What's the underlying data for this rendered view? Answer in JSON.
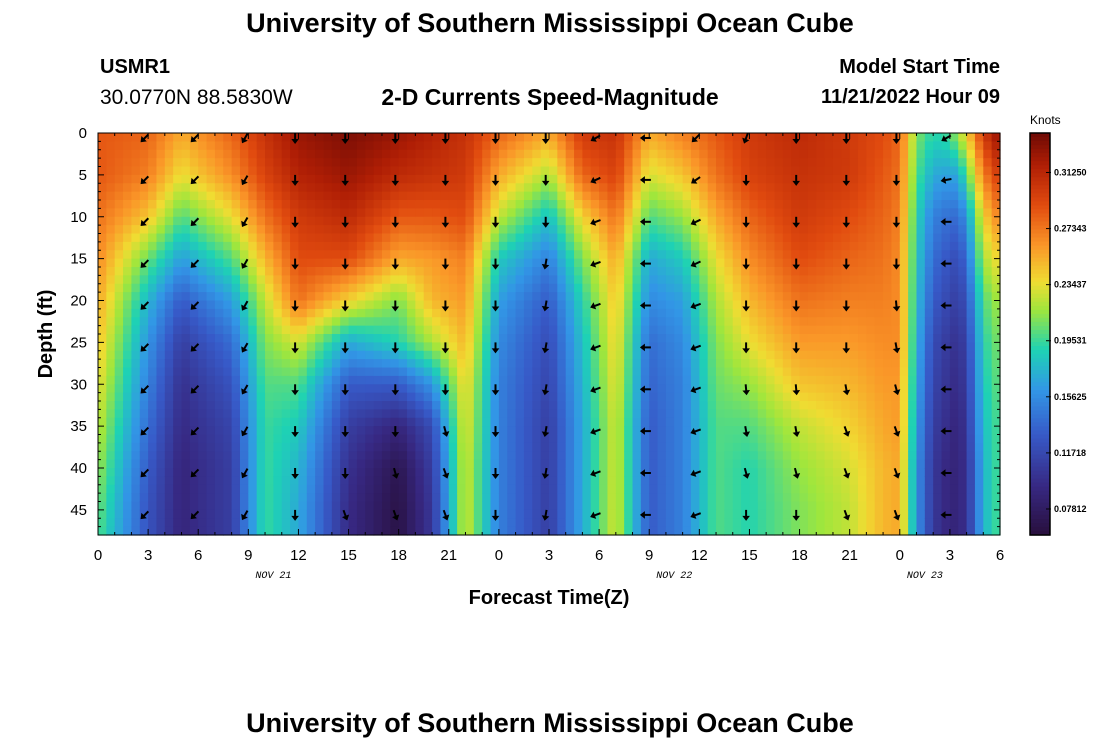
{
  "header": {
    "title": "University of Southern Mississippi Ocean Cube",
    "station_id": "USMR1",
    "coordinates": "30.0770N  88.5830W",
    "plot_title": "2-D Currents Speed-Magnitude",
    "model_start_label": "Model Start Time",
    "model_start_time": "11/21/2022 Hour 09"
  },
  "footer": {
    "title": "University of Southern Mississippi Ocean Cube"
  },
  "chart_data": {
    "type": "heatmap",
    "title": "2-D Currents Speed-Magnitude",
    "xlabel": "Forecast Time(Z)",
    "ylabel": "Depth (ft)",
    "x_ticks": [
      "0",
      "3",
      "6",
      "9",
      "12",
      "15",
      "18",
      "21",
      "0",
      "3",
      "6",
      "9",
      "12",
      "15",
      "18",
      "21",
      "0",
      "3",
      "6"
    ],
    "date_labels": [
      {
        "label": "NOV 21",
        "after_tick_index": 4
      },
      {
        "label": "NOV 22",
        "after_tick_index": 12
      },
      {
        "label": "NOV 23",
        "after_tick_index": 17
      }
    ],
    "y_ticks": [
      0,
      5,
      10,
      15,
      20,
      25,
      30,
      35,
      40,
      45
    ],
    "ylim": [
      48,
      0
    ],
    "colorbar": {
      "label": "Knots",
      "range": [
        0.06,
        0.34
      ],
      "ticks": [
        "0.31250",
        "0.27343",
        "0.23437",
        "0.19531",
        "0.15625",
        "0.11718",
        "0.07812"
      ],
      "tick_values": [
        0.3125,
        0.27343,
        0.23437,
        0.19531,
        0.15625,
        0.11718,
        0.07812
      ]
    },
    "arrow_times": [
      2.8,
      5.8,
      8.8,
      11.8,
      14.8,
      17.8,
      20.8,
      23.8,
      26.8,
      29.8,
      32.8,
      35.8,
      38.8,
      41.8,
      44.8,
      47.8,
      50.8
    ],
    "arrow_depths": [
      0,
      5,
      10,
      15,
      20,
      25,
      30,
      35,
      40,
      45
    ],
    "arrow_directions_deg": [
      [
        225,
        225,
        225,
        225,
        225,
        225,
        225,
        225,
        225,
        225
      ],
      [
        225,
        225,
        225,
        225,
        225,
        225,
        225,
        225,
        225,
        225
      ],
      [
        210,
        210,
        210,
        210,
        210,
        210,
        210,
        210,
        210,
        210
      ],
      [
        180,
        180,
        180,
        180,
        180,
        180,
        180,
        180,
        180,
        180
      ],
      [
        180,
        180,
        180,
        180,
        180,
        180,
        180,
        180,
        180,
        160
      ],
      [
        180,
        180,
        180,
        180,
        180,
        180,
        180,
        180,
        165,
        160
      ],
      [
        180,
        180,
        180,
        180,
        180,
        180,
        180,
        165,
        160,
        160
      ],
      [
        180,
        180,
        180,
        180,
        180,
        180,
        180,
        180,
        180,
        180
      ],
      [
        180,
        180,
        180,
        190,
        190,
        190,
        190,
        190,
        190,
        190
      ],
      [
        240,
        245,
        250,
        250,
        250,
        250,
        250,
        250,
        250,
        250
      ],
      [
        270,
        270,
        270,
        270,
        270,
        270,
        270,
        270,
        270,
        270
      ],
      [
        225,
        235,
        245,
        245,
        250,
        250,
        250,
        250,
        250,
        250
      ],
      [
        200,
        180,
        180,
        180,
        180,
        180,
        175,
        170,
        165,
        180
      ],
      [
        180,
        180,
        180,
        180,
        180,
        180,
        175,
        170,
        165,
        180
      ],
      [
        180,
        180,
        180,
        180,
        180,
        180,
        170,
        160,
        160,
        160
      ],
      [
        180,
        180,
        180,
        180,
        175,
        170,
        165,
        160,
        160,
        160
      ],
      [
        240,
        260,
        270,
        270,
        270,
        270,
        270,
        270,
        270,
        270
      ]
    ],
    "speed_profiles": {
      "times": [
        0,
        3,
        5,
        8,
        10,
        12,
        15,
        18,
        20,
        22,
        24,
        27,
        29,
        31,
        33,
        35,
        37,
        39,
        42,
        45,
        47,
        48,
        49,
        50,
        51,
        51.5,
        52,
        53,
        54
      ],
      "depths": [
        0,
        5,
        10,
        15,
        20,
        25,
        30,
        35,
        40,
        45,
        48
      ],
      "values": [
        [
          0.285,
          0.285,
          0.275,
          0.265,
          0.255,
          0.245,
          0.235,
          0.225,
          0.215,
          0.205,
          0.2
        ],
        [
          0.28,
          0.27,
          0.245,
          0.205,
          0.175,
          0.16,
          0.15,
          0.14,
          0.13,
          0.125,
          0.125
        ],
        [
          0.255,
          0.235,
          0.2,
          0.165,
          0.13,
          0.11,
          0.1,
          0.095,
          0.09,
          0.09,
          0.09
        ],
        [
          0.28,
          0.265,
          0.235,
          0.2,
          0.165,
          0.14,
          0.125,
          0.115,
          0.11,
          0.11,
          0.11
        ],
        [
          0.305,
          0.295,
          0.275,
          0.25,
          0.225,
          0.21,
          0.2,
          0.195,
          0.195,
          0.195,
          0.195
        ],
        [
          0.325,
          0.315,
          0.3,
          0.29,
          0.275,
          0.23,
          0.2,
          0.185,
          0.175,
          0.17,
          0.17
        ],
        [
          0.335,
          0.325,
          0.31,
          0.29,
          0.24,
          0.17,
          0.13,
          0.11,
          0.1,
          0.095,
          0.095
        ],
        [
          0.325,
          0.31,
          0.285,
          0.255,
          0.21,
          0.19,
          0.13,
          0.09,
          0.07,
          0.065,
          0.065
        ],
        [
          0.315,
          0.305,
          0.285,
          0.26,
          0.25,
          0.22,
          0.16,
          0.12,
          0.11,
          0.105,
          0.105
        ],
        [
          0.305,
          0.3,
          0.29,
          0.27,
          0.26,
          0.25,
          0.24,
          0.235,
          0.23,
          0.23,
          0.23
        ],
        [
          0.28,
          0.255,
          0.225,
          0.185,
          0.165,
          0.155,
          0.15,
          0.15,
          0.15,
          0.15,
          0.15
        ],
        [
          0.255,
          0.22,
          0.18,
          0.15,
          0.13,
          0.12,
          0.115,
          0.11,
          0.11,
          0.11,
          0.11
        ],
        [
          0.3,
          0.28,
          0.24,
          0.21,
          0.19,
          0.18,
          0.175,
          0.17,
          0.17,
          0.17,
          0.17
        ],
        [
          0.305,
          0.295,
          0.275,
          0.255,
          0.245,
          0.24,
          0.235,
          0.23,
          0.23,
          0.23,
          0.23
        ],
        [
          0.255,
          0.23,
          0.2,
          0.17,
          0.155,
          0.14,
          0.135,
          0.13,
          0.13,
          0.13,
          0.13
        ],
        [
          0.27,
          0.245,
          0.215,
          0.185,
          0.165,
          0.155,
          0.15,
          0.15,
          0.15,
          0.15,
          0.15
        ],
        [
          0.285,
          0.275,
          0.255,
          0.235,
          0.22,
          0.21,
          0.205,
          0.2,
          0.2,
          0.2,
          0.2
        ],
        [
          0.3,
          0.295,
          0.28,
          0.265,
          0.25,
          0.235,
          0.215,
          0.2,
          0.19,
          0.19,
          0.19
        ],
        [
          0.31,
          0.305,
          0.3,
          0.29,
          0.275,
          0.26,
          0.245,
          0.225,
          0.215,
          0.21,
          0.21
        ],
        [
          0.3,
          0.3,
          0.29,
          0.28,
          0.27,
          0.26,
          0.25,
          0.24,
          0.23,
          0.225,
          0.225
        ],
        [
          0.29,
          0.285,
          0.28,
          0.275,
          0.27,
          0.265,
          0.26,
          0.255,
          0.25,
          0.25,
          0.25
        ],
        [
          0.28,
          0.275,
          0.27,
          0.265,
          0.265,
          0.265,
          0.26,
          0.26,
          0.255,
          0.255,
          0.255
        ],
        [
          0.21,
          0.2,
          0.19,
          0.185,
          0.18,
          0.175,
          0.17,
          0.165,
          0.16,
          0.16,
          0.16
        ],
        [
          0.19,
          0.17,
          0.15,
          0.14,
          0.13,
          0.12,
          0.115,
          0.11,
          0.105,
          0.105,
          0.105
        ],
        [
          0.2,
          0.165,
          0.14,
          0.125,
          0.115,
          0.105,
          0.1,
          0.095,
          0.09,
          0.09,
          0.09
        ],
        [
          0.22,
          0.17,
          0.14,
          0.12,
          0.11,
          0.1,
          0.095,
          0.09,
          0.09,
          0.09,
          0.09
        ],
        [
          0.24,
          0.2,
          0.16,
          0.14,
          0.125,
          0.115,
          0.11,
          0.105,
          0.1,
          0.1,
          0.1
        ],
        [
          0.3,
          0.27,
          0.24,
          0.22,
          0.2,
          0.19,
          0.185,
          0.18,
          0.175,
          0.175,
          0.175
        ],
        [
          0.33,
          0.3,
          0.27,
          0.24,
          0.22,
          0.21,
          0.205,
          0.2,
          0.2,
          0.2,
          0.2
        ]
      ]
    }
  }
}
